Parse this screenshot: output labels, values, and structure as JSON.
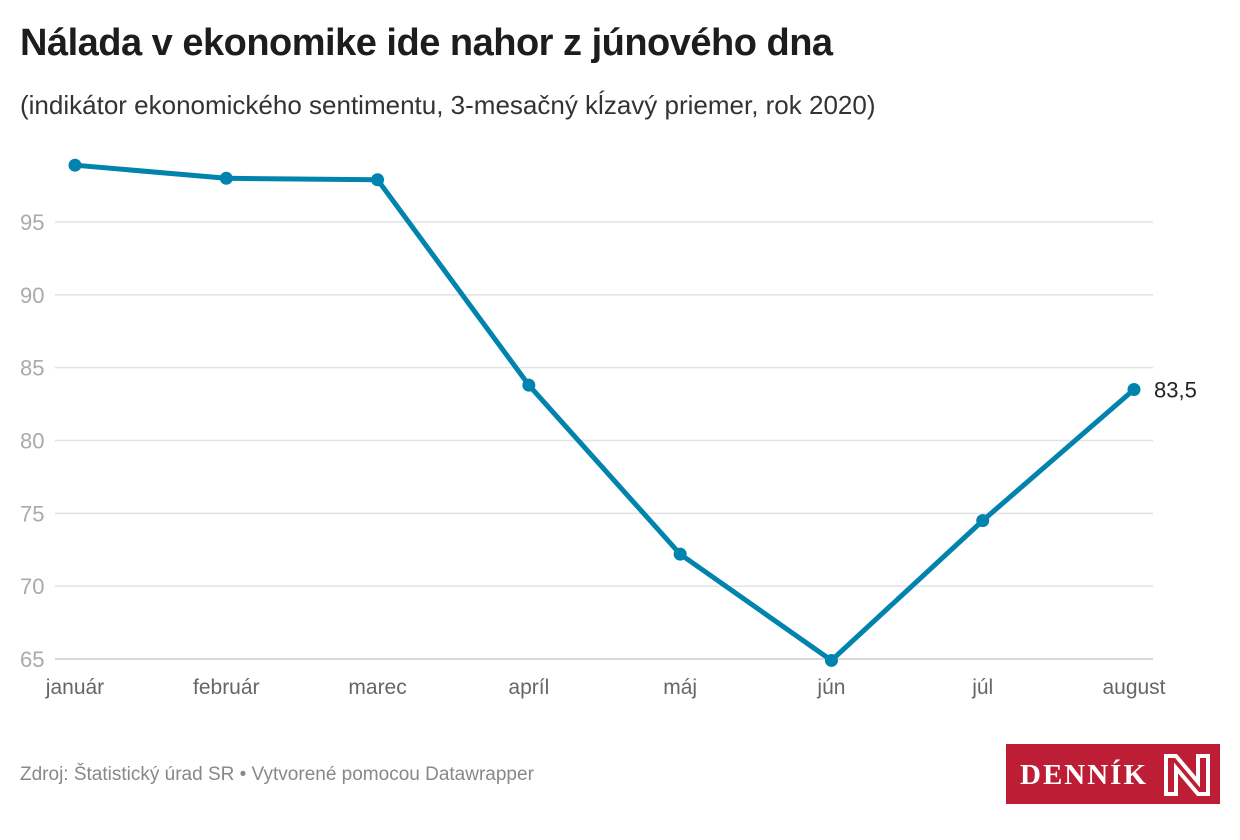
{
  "header": {
    "title": "Nálada v ekonomike ide nahor z júnového dna",
    "subtitle": "(indikátor ekonomického sentimentu, 3-mesačný kĺzavý priemer, rok 2020)"
  },
  "footer": {
    "source": "Zdroj: Štatistický úrad SR • Vytvorené pomocou Datawrapper",
    "logo_text": "DENNÍK N"
  },
  "colors": {
    "line": "#0083ad",
    "grid": "#e2e2e2",
    "logo": "#be1e35"
  },
  "chart_data": {
    "type": "line",
    "categories": [
      "január",
      "február",
      "marec",
      "apríl",
      "máj",
      "jún",
      "júl",
      "august"
    ],
    "series": [
      {
        "values": [
          98.9,
          98.0,
          97.9,
          83.8,
          72.2,
          64.9,
          74.5,
          83.5
        ]
      }
    ],
    "last_value_label": "83,5",
    "yticks": [
      65,
      70,
      75,
      80,
      85,
      90,
      95
    ],
    "ylim": [
      65,
      99
    ],
    "grid": true
  }
}
